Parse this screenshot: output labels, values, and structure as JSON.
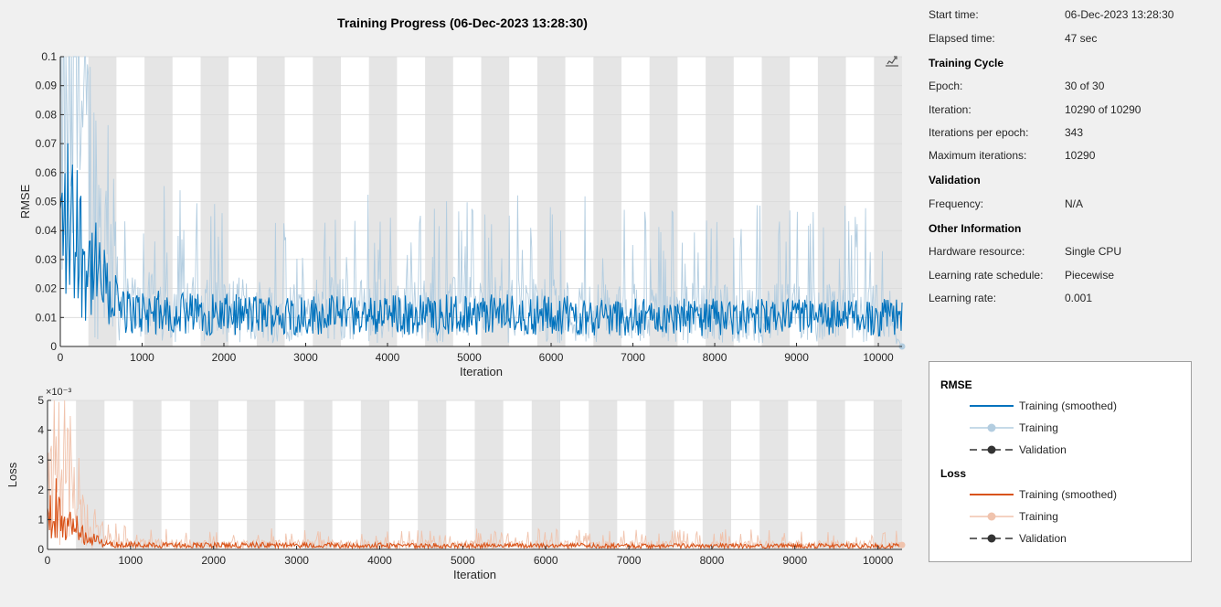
{
  "title": "Training Progress (06-Dec-2023 13:28:30)",
  "info": {
    "start_time_label": "Start time:",
    "start_time": "06-Dec-2023 13:28:30",
    "elapsed_label": "Elapsed time:",
    "elapsed": "47 sec",
    "training_cycle_heading": "Training Cycle",
    "epoch_label": "Epoch:",
    "epoch": "30 of 30",
    "iteration_label": "Iteration:",
    "iteration": "10290 of 10290",
    "ipe_label": "Iterations per epoch:",
    "ipe": "343",
    "maxit_label": "Maximum iterations:",
    "maxit": "10290",
    "validation_heading": "Validation",
    "frequency_label": "Frequency:",
    "frequency": "N/A",
    "other_heading": "Other Information",
    "hardware_label": "Hardware resource:",
    "hardware": "Single CPU",
    "lrs_label": "Learning rate schedule:",
    "lrs": "Piecewise",
    "lr_label": "Learning rate:",
    "lr": "0.001"
  },
  "legend": {
    "rmse_heading": "RMSE",
    "loss_heading": "Loss",
    "training_smoothed": "Training (smoothed)",
    "training": "Training",
    "validation": "Validation"
  },
  "colors": {
    "rmse_smoothed": "#0072bd",
    "rmse_raw": "#b3cde0",
    "loss_smoothed": "#d95319",
    "loss_raw": "#f0c3ad",
    "epoch_band": "#e5e5e5",
    "validation": "#333333"
  },
  "chart_data": [
    {
      "type": "line",
      "ylabel": "RMSE",
      "xlabel": "Iteration",
      "xlim": [
        0,
        10290
      ],
      "ylim": [
        0,
        0.1
      ],
      "xticks": [
        0,
        1000,
        2000,
        3000,
        4000,
        5000,
        6000,
        7000,
        8000,
        9000,
        10000
      ],
      "yticks": [
        0,
        0.01,
        0.02,
        0.03,
        0.04,
        0.05,
        0.06,
        0.07,
        0.08,
        0.09,
        0.1
      ],
      "ytick_labels": [
        "0",
        "0.01",
        "0.02",
        "0.03",
        "0.04",
        "0.05",
        "0.06",
        "0.07",
        "0.08",
        "0.09",
        "0.1"
      ],
      "epoch_bands": 30,
      "iterations_per_epoch": 343,
      "series": [
        {
          "name": "Training (smoothed)",
          "x": [
            0,
            100,
            200,
            300,
            400,
            500,
            600,
            800,
            1000,
            2000,
            3000,
            4000,
            5000,
            6000,
            7000,
            8000,
            9000,
            10000,
            10290
          ],
          "values": [
            0.03,
            0.033,
            0.028,
            0.024,
            0.02,
            0.016,
            0.013,
            0.012,
            0.012,
            0.011,
            0.011,
            0.011,
            0.011,
            0.011,
            0.01,
            0.01,
            0.01,
            0.01,
            0.01
          ]
        },
        {
          "name": "Training",
          "x": [
            0,
            100,
            200,
            300,
            400,
            500,
            600,
            800,
            1000,
            2000,
            3000,
            4000,
            5000,
            6000,
            7000,
            8000,
            9000,
            10000,
            10290
          ],
          "values": [
            0.03,
            0.04,
            0.035,
            0.03,
            0.024,
            0.018,
            0.014,
            0.013,
            0.013,
            0.012,
            0.012,
            0.012,
            0.012,
            0.012,
            0.011,
            0.011,
            0.011,
            0.011,
            0.0
          ]
        }
      ]
    },
    {
      "type": "line",
      "ylabel": "Loss",
      "xlabel": "Iteration",
      "exponent_label": "×10⁻³",
      "xlim": [
        0,
        10290
      ],
      "ylim": [
        0,
        5
      ],
      "xticks": [
        0,
        1000,
        2000,
        3000,
        4000,
        5000,
        6000,
        7000,
        8000,
        9000,
        10000
      ],
      "yticks": [
        0,
        1,
        2,
        3,
        4,
        5
      ],
      "ytick_labels": [
        "0",
        "1",
        "2",
        "3",
        "4",
        "5"
      ],
      "epoch_bands": 30,
      "iterations_per_epoch": 343,
      "series": [
        {
          "name": "Training (smoothed)",
          "x": [
            0,
            100,
            200,
            300,
            400,
            500,
            600,
            800,
            1000,
            2000,
            3000,
            4000,
            5000,
            6000,
            7000,
            8000,
            9000,
            10000,
            10290
          ],
          "values": [
            0.9,
            1.1,
            0.8,
            0.6,
            0.4,
            0.3,
            0.2,
            0.16,
            0.15,
            0.14,
            0.14,
            0.13,
            0.13,
            0.13,
            0.12,
            0.12,
            0.12,
            0.12,
            0.12
          ]
        },
        {
          "name": "Training",
          "x": [
            0,
            100,
            200,
            300,
            400,
            500,
            600,
            800,
            1000,
            2000,
            3000,
            4000,
            5000,
            6000,
            7000,
            8000,
            9000,
            10000,
            10290
          ],
          "values": [
            1.2,
            1.5,
            1.1,
            0.8,
            0.5,
            0.35,
            0.25,
            0.2,
            0.18,
            0.17,
            0.17,
            0.16,
            0.16,
            0.16,
            0.15,
            0.15,
            0.15,
            0.15,
            0.15
          ]
        }
      ]
    }
  ]
}
